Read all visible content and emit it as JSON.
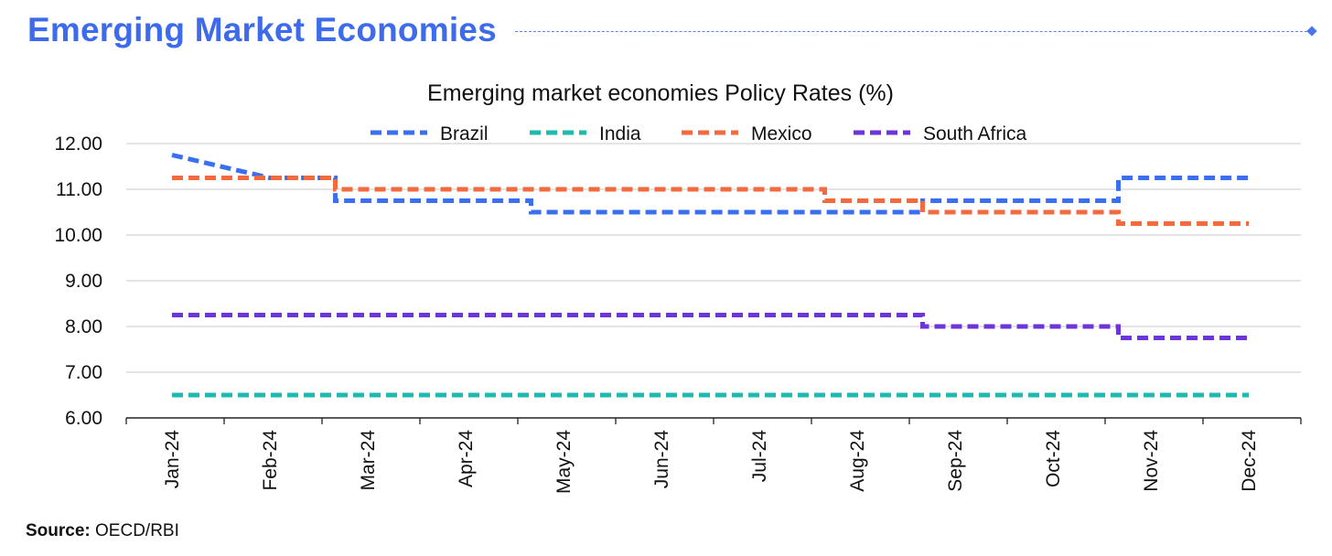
{
  "header": {
    "title": "Emerging Market Economies"
  },
  "source": {
    "label": "Source:",
    "text": "OECD/RBI"
  },
  "colors": {
    "brand": "#3d6bec",
    "Brazil": "#3a6ff0",
    "India": "#1fb9ad",
    "Mexico": "#f26a3d",
    "South Africa": "#6c35d9"
  },
  "chart_data": {
    "type": "line",
    "title": "Emerging market economies Policy Rates (%)",
    "xlabel": "",
    "ylabel": "",
    "legend_position": "top",
    "grid": "horizontal",
    "line_style": "dashed, step",
    "ylim": [
      6.0,
      12.0
    ],
    "yticks": [
      "6.00",
      "7.00",
      "8.00",
      "9.00",
      "10.00",
      "11.00",
      "12.00"
    ],
    "categories": [
      "Jan-24",
      "Feb-24",
      "Mar-24",
      "Apr-24",
      "May-24",
      "Jun-24",
      "Jul-24",
      "Aug-24",
      "Sep-24",
      "Oct-24",
      "Nov-24",
      "Dec-24"
    ],
    "series": [
      {
        "name": "Brazil",
        "values": [
          11.75,
          11.25,
          10.75,
          10.75,
          10.5,
          10.5,
          10.5,
          10.5,
          10.75,
          10.75,
          11.25,
          11.25
        ]
      },
      {
        "name": "India",
        "values": [
          6.5,
          6.5,
          6.5,
          6.5,
          6.5,
          6.5,
          6.5,
          6.5,
          6.5,
          6.5,
          6.5,
          6.5
        ]
      },
      {
        "name": "Mexico",
        "values": [
          11.25,
          11.25,
          11.0,
          11.0,
          11.0,
          11.0,
          11.0,
          10.75,
          10.5,
          10.5,
          10.25,
          10.25
        ]
      },
      {
        "name": "South Africa",
        "values": [
          8.25,
          8.25,
          8.25,
          8.25,
          8.25,
          8.25,
          8.25,
          8.25,
          8.0,
          8.0,
          7.75,
          7.75
        ]
      }
    ]
  }
}
